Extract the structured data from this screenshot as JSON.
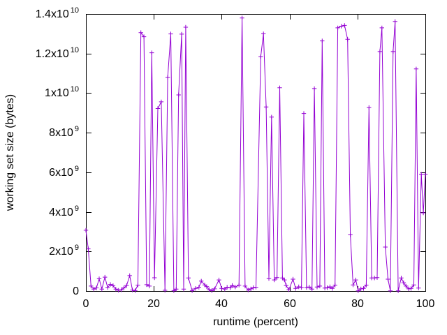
{
  "chart_data": {
    "type": "line",
    "style": "linespoints",
    "marker": "plus",
    "line_color": "#9400d3",
    "axis_color": "#000000",
    "background_color": "#ffffff",
    "title": "",
    "xlabel": "runtime (percent)",
    "ylabel": "working set size (bytes)",
    "xlim": [
      0,
      100
    ],
    "ylim": [
      0,
      14000000000
    ],
    "grid": false,
    "legend": "none",
    "x_ticks": {
      "values": [
        0,
        20,
        40,
        60,
        80,
        100
      ],
      "labels": [
        "0",
        "20",
        "40",
        "60",
        "80",
        "100"
      ]
    },
    "y_ticks": {
      "values": [
        0,
        2000000000,
        4000000000,
        6000000000,
        8000000000,
        10000000000,
        12000000000,
        14000000000
      ],
      "labels": [
        "0",
        "2x10^9",
        "4x10^9",
        "6x10^9",
        "8x10^9",
        "1x10^10",
        "1.2x10^10",
        "1.4x10^10"
      ]
    },
    "series": [
      {
        "x": [
          0,
          0.7,
          1.5,
          2.3,
          3.1,
          3.9,
          4.7,
          5.6,
          6.4,
          7.2,
          8,
          8.8,
          9.6,
          10.4,
          11.2,
          12,
          12.9,
          13.7,
          14.5,
          15.3,
          16.2,
          17.1,
          17.9,
          18.7,
          19.4,
          20.2,
          21.2,
          22.2,
          23.3,
          24.1,
          25,
          25.9,
          26.6,
          27.3,
          28.2,
          28.8,
          29.4,
          30.2,
          31.3,
          32.3,
          33.3,
          34,
          35,
          35.6,
          36.3,
          37.1,
          37.9,
          39.2,
          40,
          40.9,
          41.6,
          42.5,
          43.1,
          44,
          45.1,
          46,
          46.9,
          47.8,
          48.6,
          49.3,
          50.1,
          51.5,
          52.3,
          53.1,
          53.9,
          54.7,
          55.5,
          56.3,
          57.1,
          57.9,
          58.5,
          59,
          59.8,
          61,
          61.8,
          62.7,
          63.5,
          64.2,
          65,
          65.8,
          66.6,
          67.3,
          68.1,
          68.9,
          69.6,
          70.4,
          71.1,
          71.9,
          72.6,
          73.4,
          74.2,
          75.2,
          76.2,
          77.1,
          77.9,
          78.7,
          79.5,
          80.2,
          81,
          81.8,
          82.6,
          83.4,
          84.2,
          85,
          85.8,
          86.6,
          87.2,
          88.2,
          89,
          89.7,
          90.5,
          91.1,
          92,
          92.9,
          93.6,
          94.3,
          95.1,
          95.8,
          96.6,
          97.3,
          98,
          98.8,
          99.4,
          100
        ],
        "y": [
          3070000000.0,
          2130000000.0,
          250000000.0,
          100000000.0,
          160000000.0,
          620000000.0,
          100000000.0,
          700000000.0,
          180000000.0,
          330000000.0,
          270000000.0,
          100000000.0,
          40000000.0,
          60000000.0,
          160000000.0,
          280000000.0,
          780000000.0,
          50000000.0,
          20000000.0,
          300000000.0,
          13060000000.0,
          12850000000.0,
          320000000.0,
          250000000.0,
          12040000000.0,
          670000000.0,
          9220000000.0,
          9560000000.0,
          40000000.0,
          10790000000.0,
          12990000000.0,
          20000000.0,
          100000000.0,
          9910000000.0,
          12980000000.0,
          100000000.0,
          13330000000.0,
          660000000.0,
          20000000.0,
          130000000.0,
          190000000.0,
          500000000.0,
          310000000.0,
          220000000.0,
          70000000.0,
          20000000.0,
          110000000.0,
          560000000.0,
          130000000.0,
          100000000.0,
          190000000.0,
          170000000.0,
          280000000.0,
          200000000.0,
          300000000.0,
          13800000000.0,
          250000000.0,
          50000000.0,
          110000000.0,
          170000000.0,
          190000000.0,
          11840000000.0,
          13000000000.0,
          9300000000.0,
          630000000.0,
          8790000000.0,
          560000000.0,
          680000000.0,
          10270000000.0,
          660000000.0,
          560000000.0,
          280000000.0,
          70000000.0,
          600000000.0,
          130000000.0,
          210000000.0,
          180000000.0,
          8970000000.0,
          180000000.0,
          200000000.0,
          100000000.0,
          10230000000.0,
          200000000.0,
          250000000.0,
          12640000000.0,
          150000000.0,
          170000000.0,
          210000000.0,
          130000000.0,
          300000000.0,
          13300000000.0,
          13380000000.0,
          13420000000.0,
          12720000000.0,
          2840000000.0,
          310000000.0,
          560000000.0,
          10000000.0,
          110000000.0,
          130000000.0,
          300000000.0,
          9270000000.0,
          660000000.0,
          660000000.0,
          680000000.0,
          12100000000.0,
          13300000000.0,
          2220000000.0,
          600000000.0,
          10000000.0,
          12100000000.0,
          13620000000.0,
          10000000.0,
          660000000.0,
          420000000.0,
          250000000.0,
          110000000.0,
          130000000.0,
          310000000.0,
          11220000000.0,
          150000000.0,
          5900000000.0,
          3950000000.0,
          5900000000.0
        ]
      }
    ]
  }
}
